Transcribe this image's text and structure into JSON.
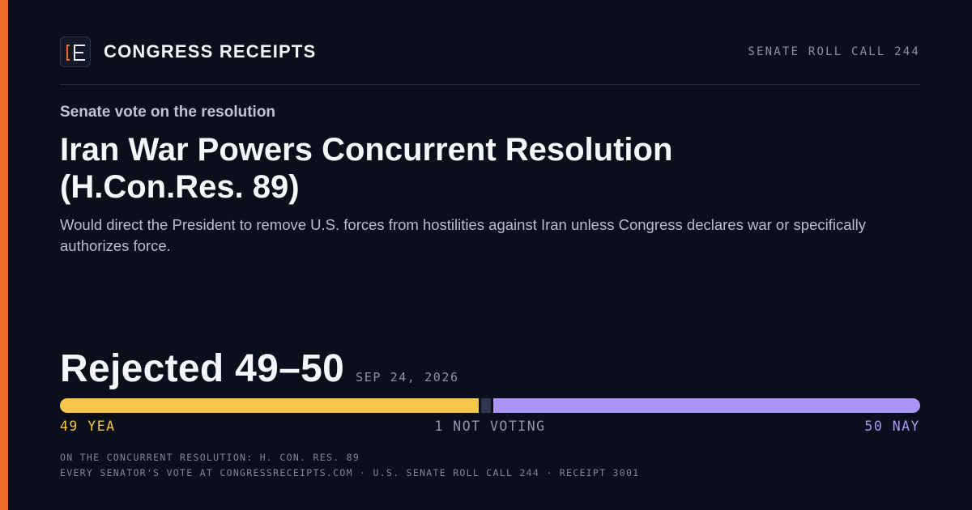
{
  "brand": {
    "name": "CONGRESS RECEIPTS",
    "accent_color": "#f06a2c",
    "logo_icon": "bracket-e-logo"
  },
  "header": {
    "roll_call": "SENATE ROLL CALL 244"
  },
  "eyebrow": "Senate vote on the resolution",
  "title": "Iran War Powers Concurrent Resolution (H.Con.Res. 89)",
  "summary": "Would direct the President to remove U.S. forces from hostilities against Iran unless Congress declares war or specifically authorizes force.",
  "result": {
    "text": "Rejected 49–50",
    "date": "SEP 24, 2026"
  },
  "tally": {
    "yea": 49,
    "not_voting": 1,
    "nay": 50,
    "yea_label": "49 YEA",
    "not_voting_label": "1 NOT VOTING",
    "nay_label": "50 NAY",
    "yea_color": "#f4c74a",
    "nay_color": "#a996f5",
    "not_voting_color": "#2f3650"
  },
  "footer": {
    "line1": "ON THE CONCURRENT RESOLUTION: H. CON. RES. 89",
    "line2": "EVERY SENATOR'S VOTE AT CONGRESSRECEIPTS.COM · U.S. SENATE ROLL CALL 244 · RECEIPT 3001"
  }
}
